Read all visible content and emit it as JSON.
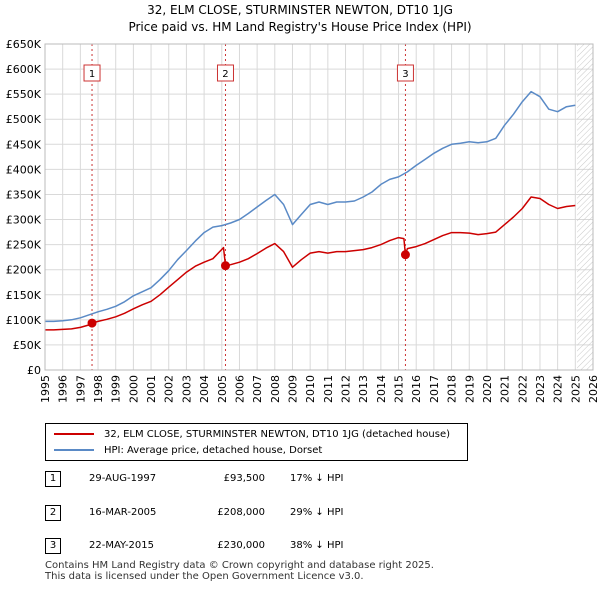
{
  "title_line1": "32, ELM CLOSE, STURMINSTER NEWTON, DT10 1JG",
  "title_line2": "Price paid vs. HM Land Registry's House Price Index (HPI)",
  "legend": {
    "property": "32, ELM CLOSE, STURMINSTER NEWTON, DT10 1JG (detached house)",
    "hpi": "HPI: Average price, detached house, Dorset"
  },
  "colors": {
    "property": "#cc0000",
    "hpi": "#5a8ac6",
    "grid": "#d9d9d9",
    "marker_line": "#cc3333"
  },
  "sales": [
    {
      "num": "1",
      "date": "29-AUG-1997",
      "price": "£93,500",
      "hpi_diff": "17% ↓ HPI",
      "year": 1997.66,
      "value": 93500
    },
    {
      "num": "2",
      "date": "16-MAR-2005",
      "price": "£208,000",
      "hpi_diff": "29% ↓ HPI",
      "year": 2005.21,
      "value": 208000
    },
    {
      "num": "3",
      "date": "22-MAY-2015",
      "price": "£230,000",
      "hpi_diff": "38% ↓ HPI",
      "year": 2015.39,
      "value": 230000
    }
  ],
  "footer": {
    "line1": "Contains HM Land Registry data © Crown copyright and database right 2025.",
    "line2": "This data is licensed under the Open Government Licence v3.0."
  },
  "chart_data": {
    "type": "line",
    "title": "32, ELM CLOSE, STURMINSTER NEWTON, DT10 1JG — Price paid vs. HM Land Registry's House Price Index (HPI)",
    "xlabel": "",
    "ylabel": "",
    "xlim": [
      1995,
      2026
    ],
    "ylim": [
      0,
      650000
    ],
    "y_ticks": [
      0,
      50000,
      100000,
      150000,
      200000,
      250000,
      300000,
      350000,
      400000,
      450000,
      500000,
      550000,
      600000,
      650000
    ],
    "y_tick_labels": [
      "£0",
      "£50K",
      "£100K",
      "£150K",
      "£200K",
      "£250K",
      "£300K",
      "£350K",
      "£400K",
      "£450K",
      "£500K",
      "£550K",
      "£600K",
      "£650K"
    ],
    "x_ticks": [
      1995,
      1996,
      1997,
      1998,
      1999,
      2000,
      2001,
      2002,
      2003,
      2004,
      2005,
      2006,
      2007,
      2008,
      2009,
      2010,
      2011,
      2012,
      2013,
      2014,
      2015,
      2016,
      2017,
      2018,
      2019,
      2020,
      2021,
      2022,
      2023,
      2024,
      2025,
      2026
    ],
    "x_tick_labels": [
      "1995",
      "1996",
      "1997",
      "1998",
      "1999",
      "2000",
      "2001",
      "2002",
      "2003",
      "2004",
      "2005",
      "2006",
      "2007",
      "2008",
      "2009",
      "2010",
      "2011",
      "2012",
      "2013",
      "2014",
      "2015",
      "2016",
      "2017",
      "2018",
      "2019",
      "2020",
      "2021",
      "2022",
      "2023",
      "2024",
      "2025",
      "2026"
    ],
    "grid": true,
    "hatched_from": 2025.1,
    "series": [
      {
        "name": "HPI: Average price, detached house, Dorset",
        "x": [
          1995,
          1995.5,
          1996,
          1996.5,
          1997,
          1997.5,
          1998,
          1998.5,
          1999,
          1999.5,
          2000,
          2000.5,
          2001,
          2001.5,
          2002,
          2002.5,
          2003,
          2003.5,
          2004,
          2004.5,
          2005,
          2005.5,
          2006,
          2006.5,
          2007,
          2007.5,
          2008,
          2008.5,
          2009,
          2009.5,
          2010,
          2010.5,
          2011,
          2011.5,
          2012,
          2012.5,
          2013,
          2013.5,
          2014,
          2014.5,
          2015,
          2015.5,
          2016,
          2016.5,
          2017,
          2017.5,
          2018,
          2018.5,
          2019,
          2019.5,
          2020,
          2020.5,
          2021,
          2021.5,
          2022,
          2022.5,
          2023,
          2023.5,
          2024,
          2024.5,
          2025
        ],
        "values": [
          97000,
          97000,
          98000,
          100000,
          104000,
          110000,
          116000,
          121000,
          127000,
          136000,
          148000,
          156000,
          164000,
          180000,
          198000,
          220000,
          238000,
          257000,
          274000,
          285000,
          288000,
          293000,
          300000,
          312000,
          325000,
          338000,
          350000,
          330000,
          290000,
          310000,
          330000,
          335000,
          330000,
          335000,
          335000,
          337000,
          345000,
          355000,
          370000,
          380000,
          385000,
          395000,
          408000,
          420000,
          432000,
          442000,
          450000,
          452000,
          455000,
          453000,
          455000,
          462000,
          488000,
          510000,
          535000,
          555000,
          545000,
          520000,
          515000,
          525000,
          528000
        ]
      },
      {
        "name": "32, ELM CLOSE, STURMINSTER NEWTON, DT10 1JG (detached house)",
        "x": [
          1995,
          1995.5,
          1996,
          1996.5,
          1997,
          1997.5,
          1997.66,
          1998,
          1998.5,
          1999,
          1999.5,
          2000,
          2000.5,
          2001,
          2001.5,
          2002,
          2002.5,
          2003,
          2003.5,
          2004,
          2004.5,
          2005.1,
          2005.21,
          2005.5,
          2006,
          2006.5,
          2007,
          2007.5,
          2008,
          2008.5,
          2009,
          2009.5,
          2010,
          2010.5,
          2011,
          2011.5,
          2012,
          2012.5,
          2013,
          2013.5,
          2014,
          2014.5,
          2015,
          2015.3,
          2015.39,
          2015.5,
          2016,
          2016.5,
          2017,
          2017.5,
          2018,
          2018.5,
          2019,
          2019.5,
          2020,
          2020.5,
          2021,
          2021.5,
          2022,
          2022.5,
          2023,
          2023.5,
          2024,
          2024.5,
          2025
        ],
        "values": [
          80000,
          80000,
          81000,
          82000,
          85000,
          90000,
          93500,
          97000,
          101000,
          106000,
          113000,
          122000,
          130000,
          137000,
          150000,
          165000,
          180000,
          195000,
          207000,
          215000,
          222000,
          244000,
          208000,
          210000,
          215000,
          222000,
          232000,
          243000,
          252000,
          236000,
          205000,
          220000,
          233000,
          236000,
          233000,
          236000,
          236000,
          238000,
          240000,
          244000,
          250000,
          258000,
          264000,
          262000,
          230000,
          242000,
          246000,
          252000,
          260000,
          268000,
          274000,
          274000,
          273000,
          270000,
          272000,
          275000,
          290000,
          305000,
          322000,
          345000,
          342000,
          330000,
          322000,
          326000,
          328000
        ]
      }
    ],
    "markers": [
      {
        "label": "1",
        "x": 1997.66,
        "y": 93500
      },
      {
        "label": "2",
        "x": 2005.21,
        "y": 208000
      },
      {
        "label": "3",
        "x": 2015.39,
        "y": 230000
      }
    ]
  }
}
